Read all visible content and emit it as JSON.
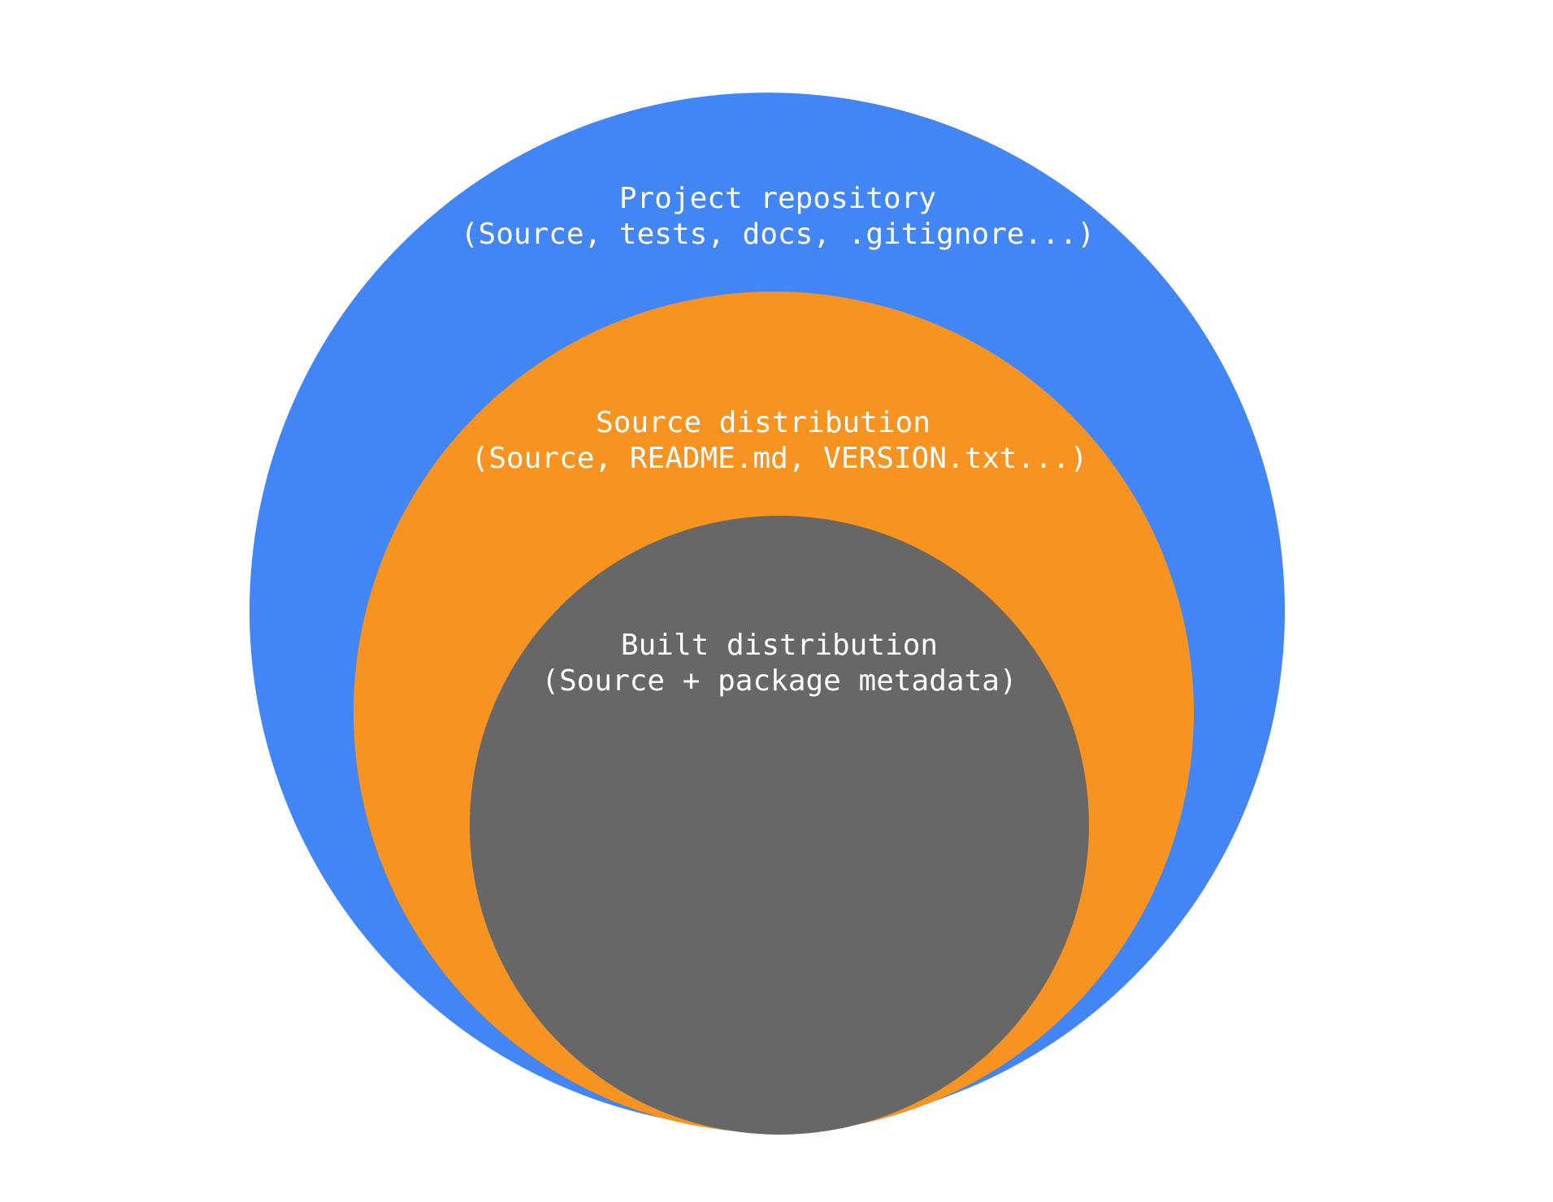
{
  "colors": {
    "background": "#ffffff",
    "project_repository": "#4285F4",
    "source_distribution": "#F69321",
    "built_distribution": "#676767",
    "label_text": "#ffffff"
  },
  "circles": {
    "project_repository": {
      "title": "Project repository",
      "subtitle": "(Source, tests, docs, .gitignore...)"
    },
    "source_distribution": {
      "title": "Source distribution",
      "subtitle": "(Source, README.md, VERSION.txt...)"
    },
    "built_distribution": {
      "title": "Built distribution",
      "subtitle": "(Source + package metadata)"
    }
  }
}
